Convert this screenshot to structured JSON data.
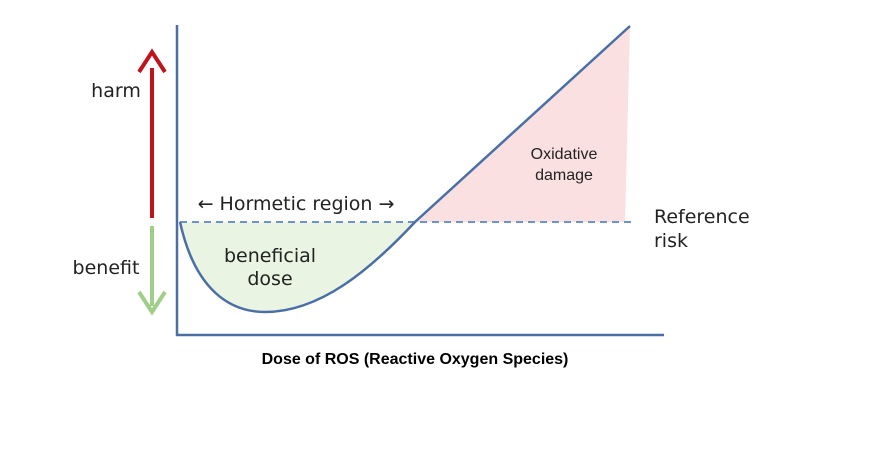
{
  "y_axis": {
    "harm": "harm",
    "benefit": "benefit"
  },
  "hormetic_region": "← Hormetic region →",
  "beneficial_dose": [
    "beneficial",
    "dose"
  ],
  "oxidative_damage": [
    "Oxidative",
    "damage"
  ],
  "reference_risk": [
    "Reference",
    "risk"
  ],
  "x_axis_title": "Dose of ROS (Reactive Oxygen Species)"
}
